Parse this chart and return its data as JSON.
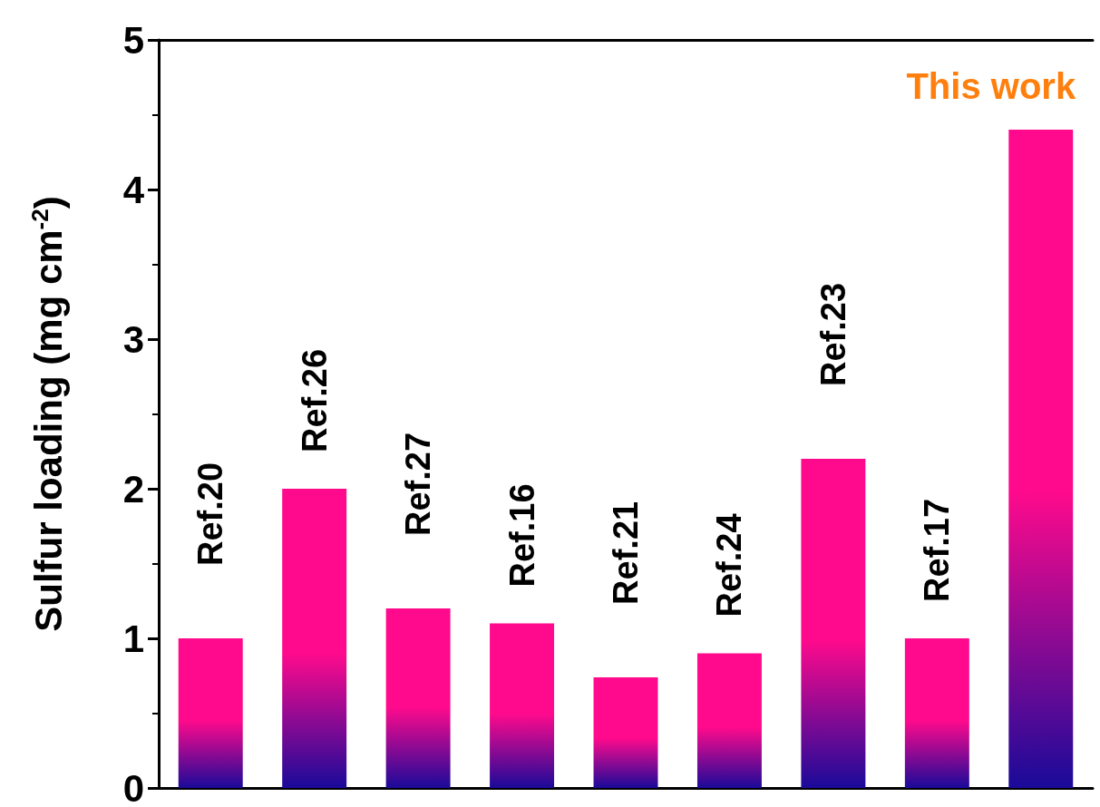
{
  "chart_data": {
    "type": "bar",
    "ylabel": "Sulfur loading (mg cm$^{-2}$)",
    "categories": [
      "Ref.20",
      "Ref.26",
      "Ref.27",
      "Ref.16",
      "Ref.21",
      "Ref.24",
      "Ref.23",
      "Ref.17",
      "This work"
    ],
    "values": [
      1.0,
      2.0,
      1.2,
      1.1,
      0.74,
      0.9,
      2.2,
      1.0,
      4.4
    ],
    "color": "#ff0a8c",
    "ylim": [
      0,
      5
    ],
    "yticks": [
      0,
      1,
      2,
      3,
      4,
      5
    ],
    "grid": false
  }
}
